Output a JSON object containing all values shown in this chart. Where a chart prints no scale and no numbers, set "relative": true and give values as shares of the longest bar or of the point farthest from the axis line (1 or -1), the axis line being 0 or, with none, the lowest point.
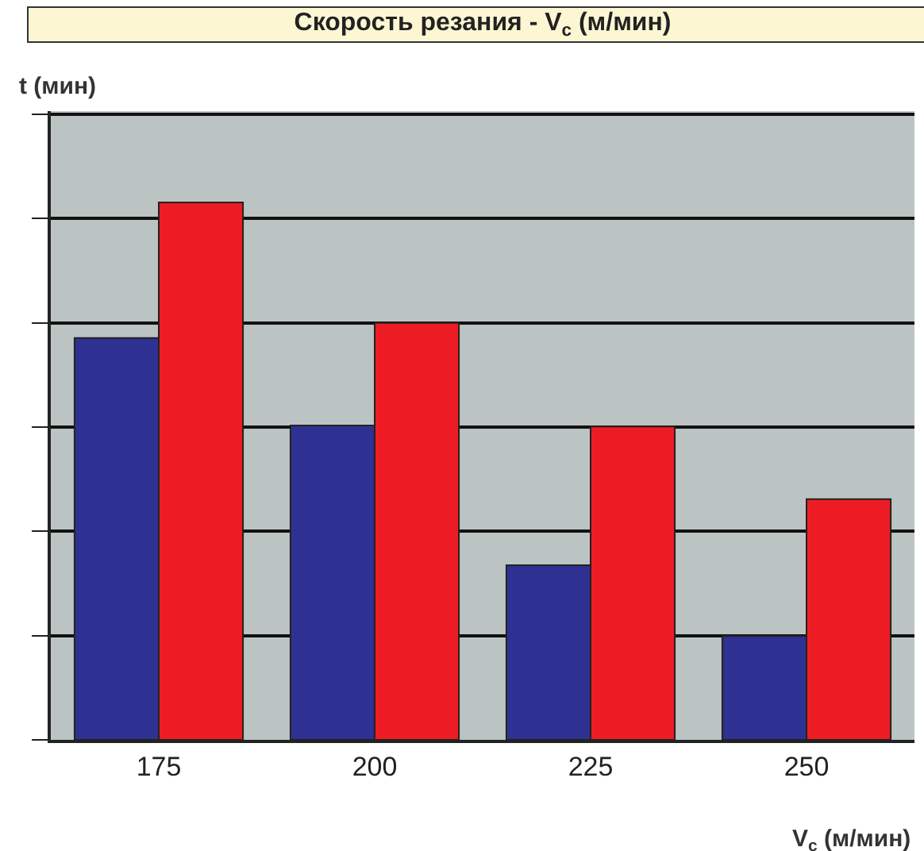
{
  "chart_data": {
    "type": "bar",
    "title": "Скорость резания - V$_{c}$ (м/мин)",
    "ylabel": "t (мин)",
    "xlabel": "V$_{c}$ (м/мин)",
    "categories": [
      "175",
      "200",
      "225",
      "250"
    ],
    "relative": true,
    "grid": "y",
    "series": [
      {
        "color": "#2e3192",
        "values": [
          0.748,
          0.585,
          0.325,
          0.193
        ]
      },
      {
        "color": "#ed1c24",
        "values": [
          1,
          0.776,
          0.583,
          0.448
        ]
      }
    ]
  }
}
